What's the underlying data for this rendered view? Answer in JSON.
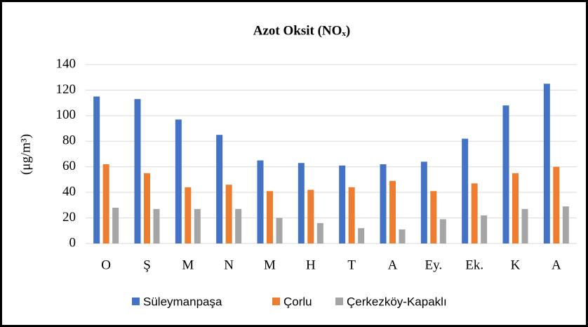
{
  "chart_data": {
    "type": "bar",
    "title": "Azot Oksit (NOₓ)",
    "y_label": "(μg/m³)",
    "categories": [
      "O",
      "Ş",
      "M",
      "N",
      "M",
      "H",
      "T",
      "A",
      "Ey.",
      "Ek.",
      "K",
      "A"
    ],
    "series": [
      {
        "name": "Süleymanpaşa",
        "color": "#4472c4",
        "values": [
          115,
          113,
          97,
          85,
          65,
          63,
          61,
          62,
          64,
          82,
          108,
          125
        ]
      },
      {
        "name": "Çorlu",
        "color": "#ed7d31",
        "values": [
          62,
          55,
          44,
          46,
          41,
          42,
          44,
          49,
          41,
          47,
          55,
          60
        ]
      },
      {
        "name": "Çerkezköy-Kapaklı",
        "color": "#a5a5a5",
        "values": [
          28,
          27,
          27,
          27,
          20,
          16,
          12,
          11,
          19,
          22,
          27,
          29
        ]
      }
    ],
    "ylim": [
      0,
      140
    ],
    "yticks": [
      0,
      20,
      40,
      60,
      80,
      100,
      120,
      140
    ],
    "grid": true,
    "legend": "bottom"
  }
}
